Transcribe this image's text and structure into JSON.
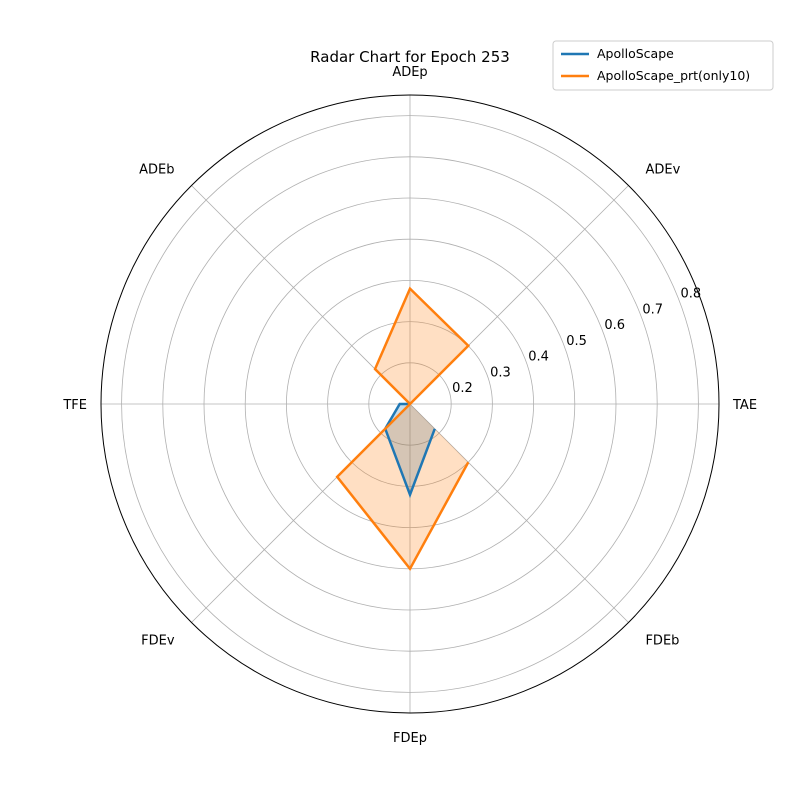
{
  "chart_data": {
    "type": "radar",
    "title": "Radar Chart for Epoch 253",
    "axes": [
      "TAE",
      "ADEv",
      "ADEp",
      "ADEb",
      "TFE",
      "FDEv",
      "FDEp",
      "FDEb"
    ],
    "rlim": [
      0.1,
      0.85
    ],
    "rticks": [
      0.2,
      0.3,
      0.4,
      0.5,
      0.6,
      0.7,
      0.8
    ],
    "rtick_labels": [
      "0.2",
      "0.3",
      "0.4",
      "0.5",
      "0.6",
      "0.7",
      "0.8"
    ],
    "grid": true,
    "legend_position": "top-right",
    "series": [
      {
        "name": "ApolloScape",
        "color": "#1f77b4",
        "fill_color": "#1f77b4",
        "values": [
          0.1,
          0.1,
          0.1,
          0.1,
          0.125,
          0.185,
          0.32,
          0.185
        ]
      },
      {
        "name": "ApolloScape_prt(only10)",
        "color": "#ff7f0e",
        "fill_color": "#ff7f0e",
        "values": [
          0.1,
          0.3,
          0.38,
          0.22,
          0.1,
          0.35,
          0.5,
          0.3
        ]
      }
    ]
  }
}
